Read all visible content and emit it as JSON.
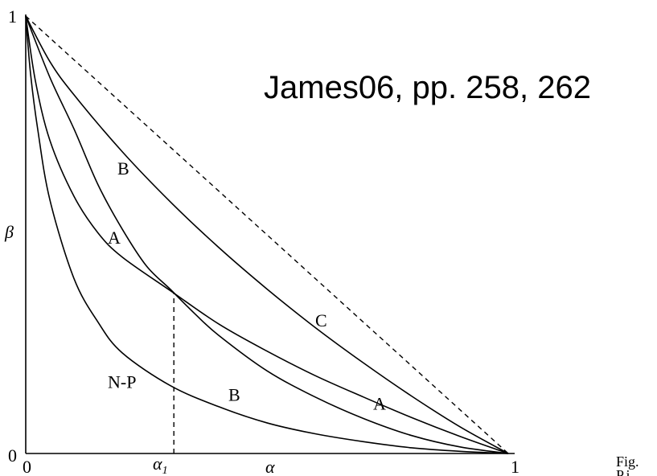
{
  "annotation": "James06, pp. 258, 262",
  "footer_fragment": {
    "line1": "Fig.",
    "line2": "P.i"
  },
  "chart_data": {
    "type": "line",
    "title": "",
    "xlabel": "α",
    "ylabel": "β",
    "xlim": [
      0,
      1
    ],
    "ylim": [
      0,
      1
    ],
    "grid": false,
    "x_ticks": [
      {
        "value": 0,
        "label": "0"
      },
      {
        "value": 0.307,
        "label": "α1"
      },
      {
        "value": 1,
        "label": "1"
      }
    ],
    "y_ticks": [
      {
        "value": 0,
        "label": "0"
      },
      {
        "value": 1,
        "label": "1"
      }
    ],
    "diagonal_reference": {
      "from": [
        0,
        1
      ],
      "to": [
        1,
        0
      ],
      "style": "dashed"
    },
    "alpha1_marker": {
      "x": 0.307,
      "y": 0.368,
      "style": "dashed"
    },
    "series": [
      {
        "name": "C",
        "label_pos": [
          0.6,
          0.29
        ],
        "x": [
          0,
          0.05,
          0.1,
          0.2,
          0.3,
          0.4,
          0.5,
          0.6,
          0.7,
          0.8,
          0.9,
          1.0
        ],
        "y": [
          1.0,
          0.896,
          0.82,
          0.69,
          0.575,
          0.471,
          0.376,
          0.288,
          0.207,
          0.131,
          0.061,
          0.0
        ]
      },
      {
        "name": "A",
        "label_pos": [
          0.72,
          0.1
        ],
        "x": [
          0,
          0.02,
          0.05,
          0.1,
          0.15,
          0.2,
          0.3,
          0.4,
          0.5,
          0.6,
          0.7,
          0.8,
          0.9,
          1.0
        ],
        "y": [
          1.0,
          0.852,
          0.716,
          0.588,
          0.504,
          0.449,
          0.372,
          0.296,
          0.234,
          0.178,
          0.129,
          0.082,
          0.039,
          0.0
        ]
      },
      {
        "name": "B",
        "label_pos": [
          0.42,
          0.12
        ],
        "x": [
          0,
          0.05,
          0.1,
          0.15,
          0.2,
          0.25,
          0.3,
          0.35,
          0.4,
          0.5,
          0.6,
          0.7,
          0.8,
          0.9,
          1.0
        ],
        "y": [
          1.0,
          0.86,
          0.742,
          0.614,
          0.513,
          0.429,
          0.375,
          0.32,
          0.27,
          0.189,
          0.129,
          0.08,
          0.041,
          0.015,
          0.0
        ]
      },
      {
        "name": "N-P",
        "label_pos": [
          0.17,
          0.15
        ],
        "x": [
          0,
          0.01,
          0.025,
          0.05,
          0.1,
          0.15,
          0.2,
          0.3,
          0.4,
          0.5,
          0.6,
          0.7,
          0.8,
          0.9,
          1.0
        ],
        "y": [
          1.0,
          0.868,
          0.74,
          0.58,
          0.4,
          0.3,
          0.23,
          0.155,
          0.107,
          0.07,
          0.045,
          0.027,
          0.013,
          0.005,
          0.0
        ]
      }
    ],
    "extra_labels": [
      {
        "text": "B",
        "pos": [
          0.19,
          0.638
        ]
      },
      {
        "text": "A",
        "pos": [
          0.17,
          0.48
        ]
      }
    ]
  }
}
